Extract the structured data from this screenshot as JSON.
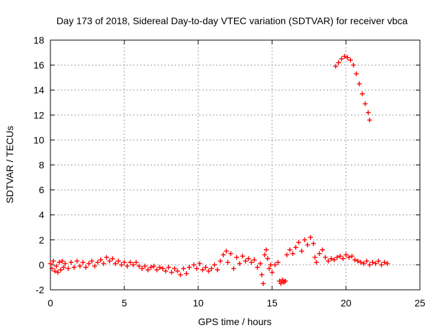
{
  "chart_data": {
    "type": "scatter",
    "title": "Day 173 of 2018, Sidereal Day-to-day VTEC variation (SDTVAR) for receiver vbca",
    "xlabel": "GPS time / hours",
    "ylabel": "SDTVAR / TECUs",
    "xlim": [
      0,
      25
    ],
    "ylim": [
      -2,
      18
    ],
    "xticks": [
      0,
      5,
      10,
      15,
      20,
      25
    ],
    "yticks": [
      -2,
      0,
      2,
      4,
      6,
      8,
      10,
      12,
      14,
      16,
      18
    ],
    "xtick_labels": [
      "0",
      "5",
      "10",
      "15",
      "20",
      "25"
    ],
    "ytick_labels": [
      "-2",
      "0",
      "2",
      "4",
      "6",
      "8",
      "10",
      "12",
      "14",
      "16",
      "18"
    ],
    "grid": true,
    "marker": "plus",
    "color": "#ff0000",
    "series": [
      {
        "name": "SDTVAR",
        "points": [
          [
            0.0,
            0.1
          ],
          [
            0.1,
            -0.3
          ],
          [
            0.2,
            0.3
          ],
          [
            0.3,
            -0.5
          ],
          [
            0.4,
            -0.1
          ],
          [
            0.5,
            -0.6
          ],
          [
            0.6,
            0.2
          ],
          [
            0.7,
            -0.4
          ],
          [
            0.8,
            0.3
          ],
          [
            0.9,
            -0.2
          ],
          [
            1.0,
            0.1
          ],
          [
            1.2,
            -0.3
          ],
          [
            1.4,
            0.2
          ],
          [
            1.6,
            -0.2
          ],
          [
            1.8,
            0.3
          ],
          [
            2.0,
            -0.1
          ],
          [
            2.2,
            0.2
          ],
          [
            2.4,
            -0.2
          ],
          [
            2.6,
            0.1
          ],
          [
            2.8,
            0.3
          ],
          [
            3.0,
            -0.1
          ],
          [
            3.2,
            0.2
          ],
          [
            3.4,
            0.4
          ],
          [
            3.6,
            0.1
          ],
          [
            3.8,
            0.6
          ],
          [
            4.0,
            0.3
          ],
          [
            4.2,
            0.5
          ],
          [
            4.4,
            0.1
          ],
          [
            4.6,
            0.3
          ],
          [
            4.8,
            0.0
          ],
          [
            5.0,
            0.2
          ],
          [
            5.2,
            -0.1
          ],
          [
            5.4,
            0.2
          ],
          [
            5.6,
            0.0
          ],
          [
            5.8,
            0.2
          ],
          [
            6.0,
            -0.1
          ],
          [
            6.2,
            -0.3
          ],
          [
            6.4,
            -0.1
          ],
          [
            6.6,
            -0.4
          ],
          [
            6.8,
            -0.2
          ],
          [
            7.0,
            -0.1
          ],
          [
            7.2,
            -0.4
          ],
          [
            7.4,
            -0.2
          ],
          [
            7.6,
            -0.3
          ],
          [
            7.8,
            -0.5
          ],
          [
            8.0,
            -0.2
          ],
          [
            8.2,
            -0.6
          ],
          [
            8.4,
            -0.3
          ],
          [
            8.6,
            -0.5
          ],
          [
            8.8,
            -0.8
          ],
          [
            9.0,
            -0.3
          ],
          [
            9.2,
            -0.7
          ],
          [
            9.4,
            -0.2
          ],
          [
            9.7,
            0.0
          ],
          [
            9.9,
            -0.3
          ],
          [
            10.1,
            0.1
          ],
          [
            10.3,
            -0.4
          ],
          [
            10.5,
            -0.2
          ],
          [
            10.7,
            -0.5
          ],
          [
            10.9,
            -0.3
          ],
          [
            11.1,
            0.0
          ],
          [
            11.3,
            -0.4
          ],
          [
            11.5,
            0.3
          ],
          [
            11.7,
            0.8
          ],
          [
            11.9,
            1.1
          ],
          [
            12.0,
            0.2
          ],
          [
            12.2,
            0.9
          ],
          [
            12.4,
            -0.3
          ],
          [
            12.6,
            0.6
          ],
          [
            12.8,
            0.1
          ],
          [
            13.0,
            0.7
          ],
          [
            13.2,
            0.3
          ],
          [
            13.4,
            0.5
          ],
          [
            13.6,
            0.2
          ],
          [
            13.8,
            0.4
          ],
          [
            14.0,
            -0.2
          ],
          [
            14.2,
            0.1
          ],
          [
            14.3,
            -0.8
          ],
          [
            14.4,
            -1.5
          ],
          [
            14.5,
            0.8
          ],
          [
            14.6,
            1.2
          ],
          [
            14.7,
            0.5
          ],
          [
            14.8,
            -0.3
          ],
          [
            14.9,
            0.0
          ],
          [
            15.0,
            -0.6
          ],
          [
            15.2,
            0.0
          ],
          [
            15.4,
            0.2
          ],
          [
            15.5,
            -1.3
          ],
          [
            15.6,
            -1.5
          ],
          [
            15.7,
            -1.2
          ],
          [
            15.8,
            -1.4
          ],
          [
            15.9,
            -1.3
          ],
          [
            16.0,
            0.8
          ],
          [
            16.2,
            1.2
          ],
          [
            16.4,
            0.9
          ],
          [
            16.6,
            1.4
          ],
          [
            16.8,
            1.8
          ],
          [
            17.0,
            1.1
          ],
          [
            17.2,
            2.0
          ],
          [
            17.4,
            1.6
          ],
          [
            17.6,
            2.2
          ],
          [
            17.8,
            1.7
          ],
          [
            17.9,
            0.6
          ],
          [
            18.0,
            0.2
          ],
          [
            18.2,
            0.9
          ],
          [
            18.4,
            1.2
          ],
          [
            18.6,
            0.6
          ],
          [
            18.8,
            0.3
          ],
          [
            19.0,
            0.5
          ],
          [
            19.2,
            0.4
          ],
          [
            19.4,
            0.6
          ],
          [
            19.6,
            0.7
          ],
          [
            19.8,
            0.5
          ],
          [
            20.0,
            0.8
          ],
          [
            20.2,
            0.6
          ],
          [
            20.4,
            0.7
          ],
          [
            20.6,
            0.4
          ],
          [
            20.8,
            0.3
          ],
          [
            21.0,
            0.2
          ],
          [
            21.2,
            0.1
          ],
          [
            21.4,
            0.3
          ],
          [
            21.6,
            0.0
          ],
          [
            21.8,
            0.2
          ],
          [
            22.0,
            0.1
          ],
          [
            22.2,
            0.3
          ],
          [
            22.4,
            0.0
          ],
          [
            22.6,
            0.2
          ],
          [
            22.8,
            0.1
          ],
          [
            19.3,
            15.9
          ],
          [
            19.5,
            16.2
          ],
          [
            19.7,
            16.5
          ],
          [
            19.9,
            16.7
          ],
          [
            20.1,
            16.6
          ],
          [
            20.3,
            16.4
          ],
          [
            20.5,
            16.0
          ],
          [
            20.7,
            15.3
          ],
          [
            20.9,
            14.5
          ],
          [
            21.1,
            13.7
          ],
          [
            21.3,
            12.9
          ],
          [
            21.5,
            12.2
          ],
          [
            21.6,
            11.6
          ]
        ]
      }
    ]
  }
}
